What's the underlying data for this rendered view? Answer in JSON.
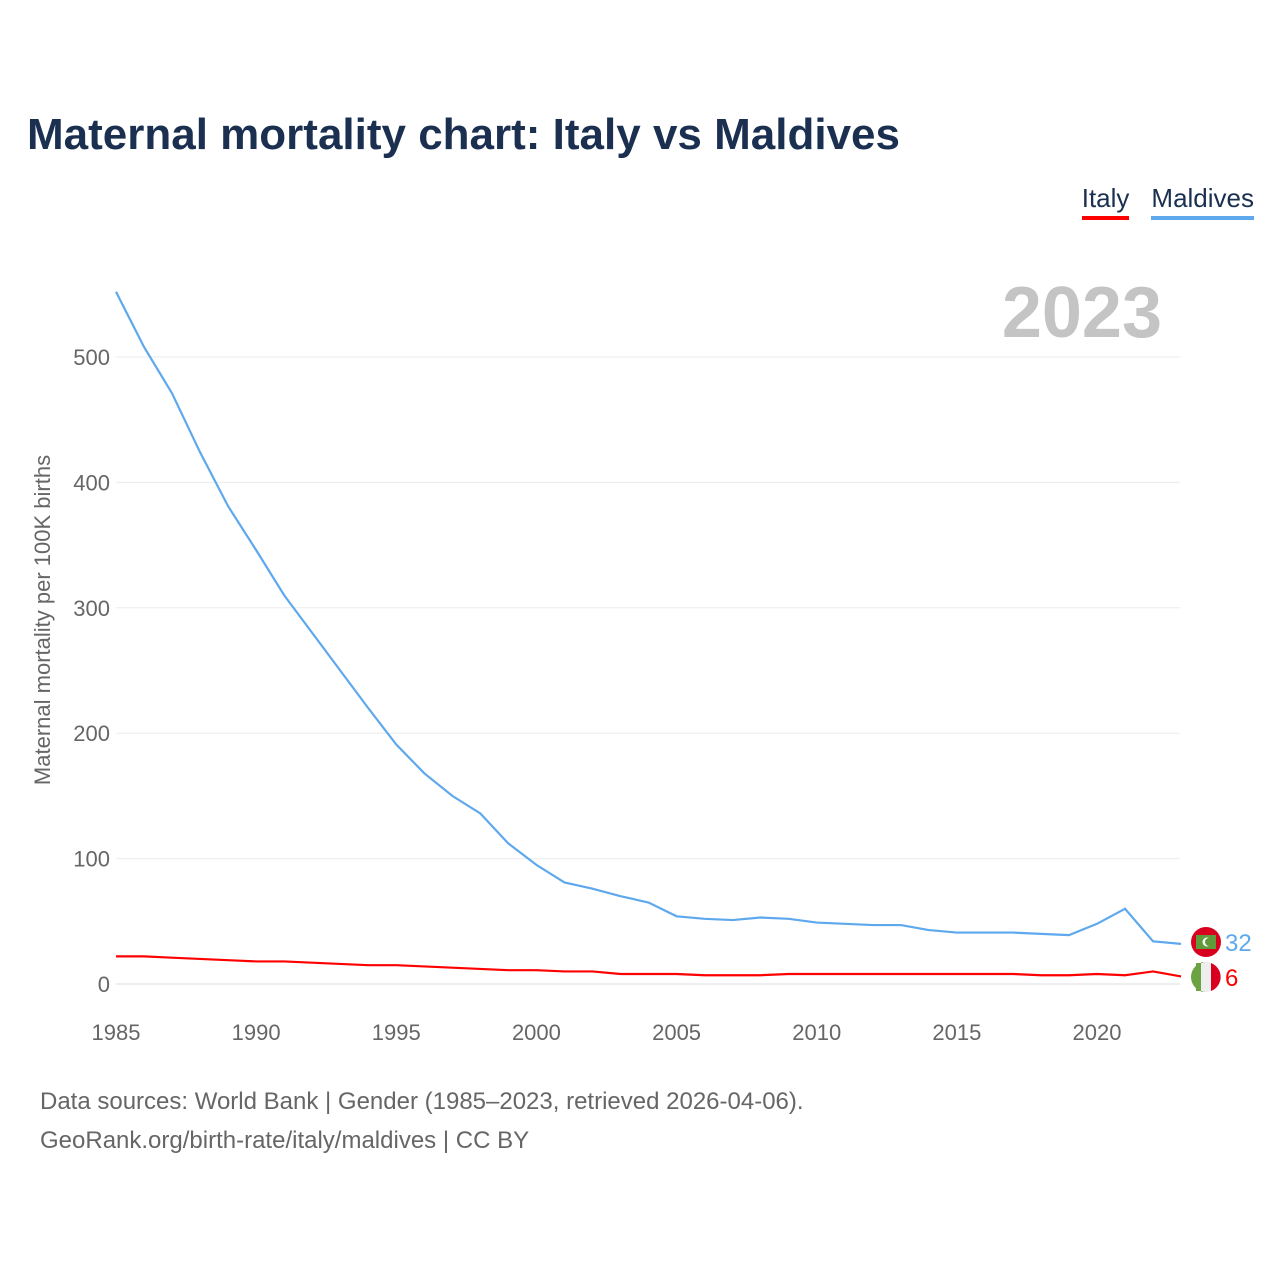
{
  "title": "Maternal mortality chart: Italy vs Maldives",
  "year_label": "2023",
  "footer": {
    "line1": "Data sources: World Bank | Gender (1985–2023, retrieved 2026-04-06).",
    "line2": "GeoRank.org/birth-rate/italy/maldives | CC BY"
  },
  "chart_data": {
    "type": "line",
    "title": "Maternal mortality chart: Italy vs Maldives",
    "xlabel": "",
    "ylabel": "Maternal mortality per 100K births",
    "xlim": [
      1985,
      2023
    ],
    "ylim": [
      0,
      560
    ],
    "xticks": [
      1985,
      1990,
      1995,
      2000,
      2005,
      2010,
      2015,
      2020
    ],
    "yticks": [
      0,
      100,
      200,
      300,
      400,
      500
    ],
    "grid": true,
    "legend_position": "top-right",
    "x": [
      1985,
      1986,
      1987,
      1988,
      1989,
      1990,
      1991,
      1992,
      1993,
      1994,
      1995,
      1996,
      1997,
      1998,
      1999,
      2000,
      2001,
      2002,
      2003,
      2004,
      2005,
      2006,
      2007,
      2008,
      2009,
      2010,
      2011,
      2012,
      2013,
      2014,
      2015,
      2016,
      2017,
      2018,
      2019,
      2020,
      2021,
      2022,
      2023
    ],
    "series": [
      {
        "name": "Italy",
        "color": "#ff0000",
        "end_label": "6",
        "values": [
          22,
          22,
          21,
          20,
          19,
          18,
          18,
          17,
          16,
          15,
          15,
          14,
          13,
          12,
          11,
          11,
          10,
          10,
          8,
          8,
          8,
          7,
          7,
          7,
          8,
          8,
          8,
          8,
          8,
          8,
          8,
          8,
          8,
          7,
          7,
          8,
          7,
          10,
          6
        ]
      },
      {
        "name": "Maldives",
        "color": "#5ea8ee",
        "end_label": "32",
        "values": [
          552,
          508,
          471,
          424,
          381,
          346,
          310,
          280,
          250,
          220,
          191,
          168,
          150,
          136,
          112,
          95,
          81,
          76,
          70,
          65,
          54,
          52,
          51,
          53,
          52,
          49,
          48,
          47,
          47,
          43,
          41,
          41,
          41,
          40,
          39,
          48,
          60,
          34,
          32
        ]
      }
    ]
  }
}
